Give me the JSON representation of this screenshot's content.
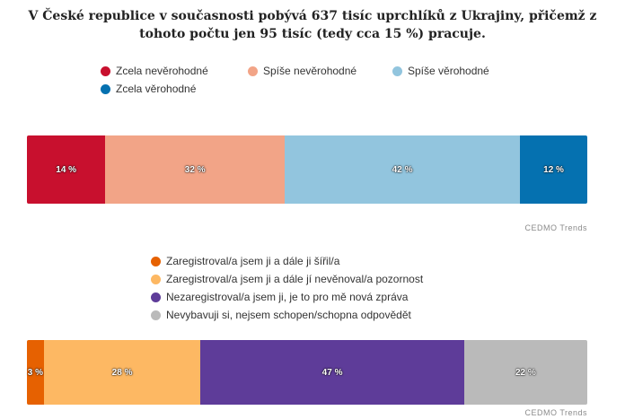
{
  "title_line1": "V České republice v současnosti pobývá 637 tisíc uprchlíků z Ukrajiny, přičemž z",
  "title_line2": "tohoto počtu jen 95 tisíc (tedy cca 15 %) pracuje.",
  "chart_data": [
    {
      "type": "bar",
      "orientation": "horizontal-stacked-100",
      "legend_position": "top",
      "series": [
        {
          "name": "Zcela nevěrohodné",
          "value": 14,
          "label": "14 %",
          "color": "#c8102e"
        },
        {
          "name": "Spíše nevěrohodné",
          "value": 32,
          "label": "32 %",
          "color": "#f2a487"
        },
        {
          "name": "Spíše věrohodné",
          "value": 42,
          "label": "42 %",
          "color": "#92c5de"
        },
        {
          "name": "Zcela věrohodné",
          "value": 12,
          "label": "12 %",
          "color": "#0571b0"
        }
      ],
      "source": "CEDMO Trends"
    },
    {
      "type": "bar",
      "orientation": "horizontal-stacked-100",
      "legend_position": "top",
      "series": [
        {
          "name": "Zaregistroval/a jsem ji a dále ji šířil/a",
          "value": 3,
          "label": "3 %",
          "color": "#e66101"
        },
        {
          "name": "Zaregistroval/a jsem ji a dále jí nevěnoval/a pozornost",
          "value": 28,
          "label": "28 %",
          "color": "#fdb863"
        },
        {
          "name": "Nezaregistroval/a jsem ji, je to pro mě nová zpráva",
          "value": 47,
          "label": "47 %",
          "color": "#5e3c99"
        },
        {
          "name": "Nevybavuji si, nejsem schopen/schopna odpovědět",
          "value": 22,
          "label": "22 %",
          "color": "#bababa"
        }
      ],
      "source": "CEDMO Trends"
    }
  ]
}
